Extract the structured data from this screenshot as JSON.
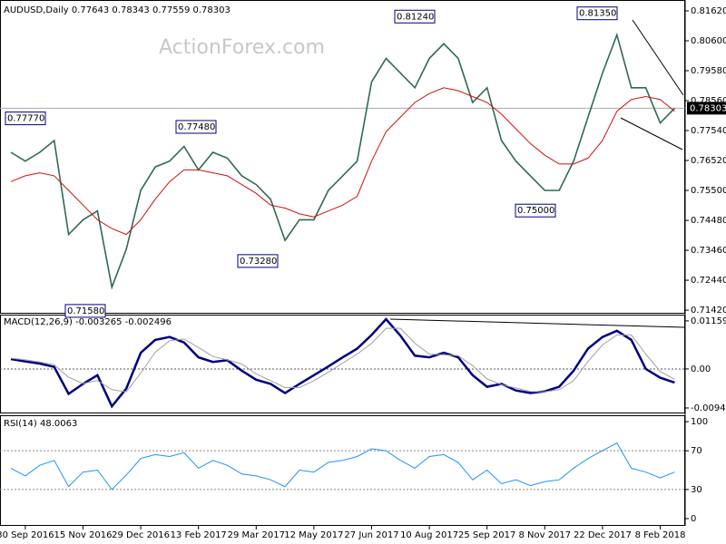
{
  "chart_data": [
    {
      "type": "line",
      "title": "AUDUSD,Daily  0.77643 0.78343 0.77559 0.78303",
      "watermark": "ActionForex.com",
      "ylim": [
        0.7133,
        0.8199
      ],
      "yticks": [
        {
          "value": 0.8162,
          "label": "0.81620"
        },
        {
          "value": 0.806,
          "label": "0.80600"
        },
        {
          "value": 0.7958,
          "label": "0.79580"
        },
        {
          "value": 0.7856,
          "label": "0.78560"
        },
        {
          "value": 0.7754,
          "label": "0.77540"
        },
        {
          "value": 0.7652,
          "label": "0.76520"
        },
        {
          "value": 0.755,
          "label": "0.75500"
        },
        {
          "value": 0.7448,
          "label": "0.74480"
        },
        {
          "value": 0.7346,
          "label": "0.73460"
        },
        {
          "value": 0.7244,
          "label": "0.72440"
        },
        {
          "value": 0.7142,
          "label": "0.71420"
        }
      ],
      "last_price": {
        "value": 0.78303,
        "label": "0.78303"
      },
      "annotations": [
        {
          "value": 0.7777,
          "label": "0.77770"
        },
        {
          "value": 0.7158,
          "label": "0.71580"
        },
        {
          "value": 0.7748,
          "label": "0.77480"
        },
        {
          "value": 0.7328,
          "label": "0.73280"
        },
        {
          "value": 0.8124,
          "label": "0.81240"
        },
        {
          "value": 0.75,
          "label": "0.75000"
        },
        {
          "value": 0.8135,
          "label": "0.81350"
        }
      ],
      "series": [
        {
          "name": "AUDUSD",
          "color": "#2f6b50",
          "values": [
            0.768,
            0.765,
            0.768,
            0.772,
            0.74,
            0.745,
            0.748,
            0.722,
            0.735,
            0.755,
            0.763,
            0.765,
            0.77,
            0.762,
            0.768,
            0.766,
            0.76,
            0.757,
            0.752,
            0.738,
            0.745,
            0.745,
            0.755,
            0.76,
            0.765,
            0.792,
            0.8,
            0.795,
            0.79,
            0.8,
            0.805,
            0.8,
            0.785,
            0.79,
            0.772,
            0.765,
            0.76,
            0.755,
            0.755,
            0.765,
            0.78,
            0.795,
            0.808,
            0.79,
            0.79,
            0.778,
            0.783
          ]
        },
        {
          "name": "MA",
          "color": "#d01010",
          "values": [
            0.758,
            0.76,
            0.761,
            0.76,
            0.755,
            0.75,
            0.745,
            0.742,
            0.74,
            0.745,
            0.752,
            0.758,
            0.762,
            0.762,
            0.761,
            0.76,
            0.757,
            0.754,
            0.75,
            0.749,
            0.747,
            0.746,
            0.748,
            0.75,
            0.753,
            0.765,
            0.775,
            0.78,
            0.785,
            0.788,
            0.79,
            0.789,
            0.787,
            0.785,
            0.781,
            0.776,
            0.771,
            0.767,
            0.764,
            0.764,
            0.766,
            0.772,
            0.782,
            0.786,
            0.787,
            0.786,
            0.782
          ]
        }
      ]
    },
    {
      "type": "line",
      "title": "MACD(12,26,9) -0.003265 -0.002496",
      "ylim": [
        -0.0105,
        0.0131
      ],
      "yticks": [
        {
          "value": 0.01159,
          "label": "0.01159"
        },
        {
          "value": 0,
          "label": "0.00"
        },
        {
          "value": -0.0094,
          "label": "-0.00940"
        }
      ],
      "series": [
        {
          "name": "MACD",
          "color": "#000080",
          "values": [
            0.0024,
            0.0018,
            0.0013,
            0.0005,
            -0.006,
            -0.0036,
            -0.0015,
            -0.009,
            -0.0047,
            0.0039,
            0.007,
            0.0077,
            0.0064,
            0.0028,
            0.0017,
            0.0021,
            -0.0004,
            -0.0026,
            -0.0036,
            -0.0058,
            -0.0036,
            -0.0015,
            0.0006,
            0.0028,
            0.0049,
            0.0082,
            0.012,
            0.008,
            0.0032,
            0.0028,
            0.0039,
            0.0028,
            -0.0015,
            -0.0043,
            -0.0036,
            -0.0052,
            -0.0058,
            -0.0054,
            -0.0043,
            -0.0004,
            0.0049,
            0.0077,
            0.0092,
            0.007,
            0.0,
            -0.0021,
            -0.003265
          ]
        },
        {
          "name": "Signal",
          "color": "#a0a0a0",
          "values": [
            0.0026,
            0.0022,
            0.0017,
            0.001,
            -0.002,
            -0.0035,
            -0.0028,
            -0.005,
            -0.0055,
            -0.001,
            0.004,
            0.0068,
            0.0072,
            0.0052,
            0.003,
            0.0022,
            0.0012,
            -0.0012,
            -0.0028,
            -0.0045,
            -0.0045,
            -0.0028,
            -0.0008,
            0.0014,
            0.0036,
            0.0062,
            0.0098,
            0.0098,
            0.0062,
            0.0036,
            0.0034,
            0.0032,
            0.0008,
            -0.0024,
            -0.0038,
            -0.0046,
            -0.0054,
            -0.0055,
            -0.005,
            -0.0028,
            0.0018,
            0.0058,
            0.0082,
            0.0082,
            0.0036,
            -0.0006,
            -0.002496
          ]
        }
      ]
    },
    {
      "type": "line",
      "title": "RSI(14) 48.0063",
      "ylim": [
        -7.5,
        106.6
      ],
      "yticks": [
        100,
        70,
        30,
        0
      ],
      "levels": [
        70,
        30
      ],
      "categories": [
        null,
        "30 Sep 2016",
        null,
        null,
        null,
        "15 Nov 2016",
        null,
        null,
        null,
        "29 Dec 2016",
        null,
        null,
        null,
        "13 Feb 2017",
        null,
        null,
        null,
        "29 Mar 2017",
        null,
        null,
        null,
        "12 May 2017",
        null,
        null,
        null,
        "27 Jun 2017",
        null,
        null,
        null,
        "10 Aug 2017",
        null,
        null,
        null,
        "25 Sep 2017",
        null,
        null,
        null,
        "8 Nov 2017",
        null,
        null,
        null,
        "22 Dec 2017",
        null,
        null,
        null,
        "8 Feb 2018",
        null
      ],
      "series": [
        {
          "name": "RSI",
          "color": "#1e90ff",
          "values": [
            52,
            44,
            55,
            60,
            33,
            48,
            50,
            30,
            45,
            62,
            66,
            64,
            68,
            52,
            60,
            55,
            46,
            44,
            40,
            33,
            50,
            48,
            58,
            60,
            64,
            72,
            70,
            60,
            52,
            64,
            66,
            58,
            40,
            50,
            36,
            40,
            34,
            38,
            40,
            52,
            62,
            70,
            78,
            52,
            48,
            42,
            48.0063
          ]
        }
      ]
    }
  ]
}
